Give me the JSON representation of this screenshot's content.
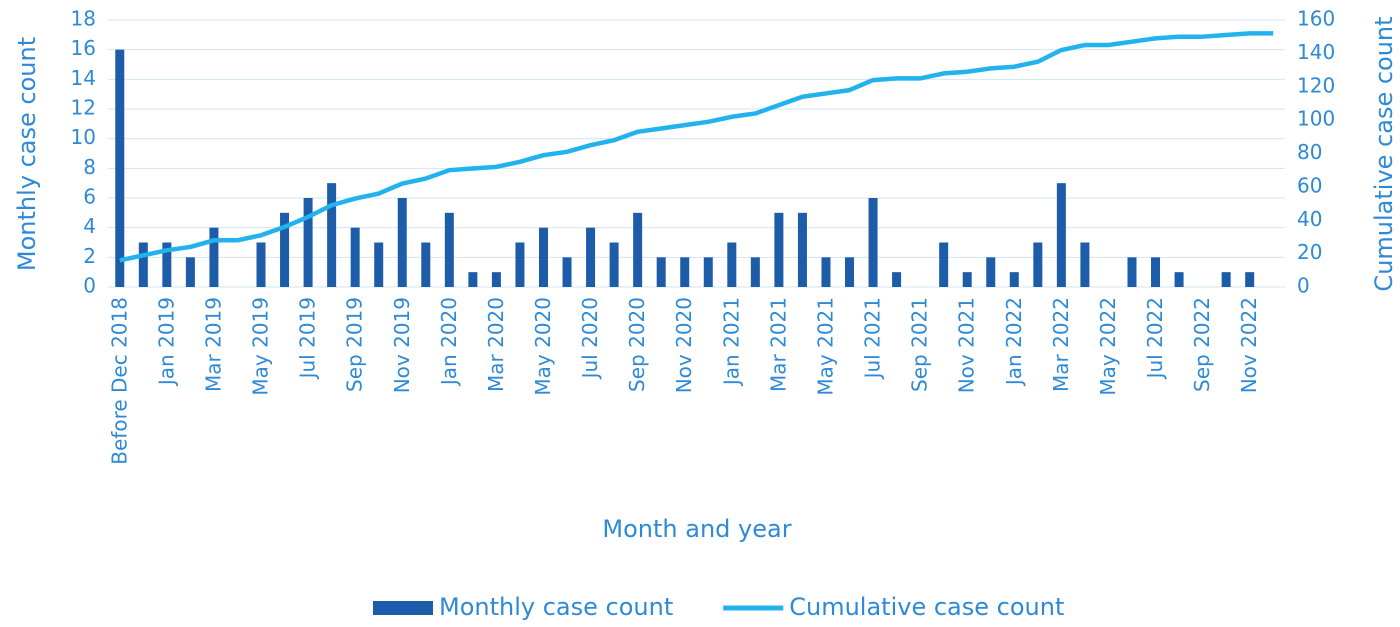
{
  "chart_data": {
    "type": "bar",
    "x_label": "Month and year",
    "y_label": "Monthly  case count",
    "y2_label": "Cumulative  case count",
    "categories": [
      "Before Dec 2018",
      null,
      "Jan 2019",
      null,
      "Mar 2019",
      null,
      "May 2019",
      null,
      "Jul 2019",
      null,
      "Sep 2019",
      null,
      "Nov 2019",
      null,
      "Jan 2020",
      null,
      "Mar 2020",
      null,
      "May 2020",
      null,
      "Jul 2020",
      null,
      "Sep 2020",
      null,
      "Nov 2020",
      null,
      "Jan 2021",
      null,
      "Mar 2021",
      null,
      "May 2021",
      null,
      "Jul 2021",
      null,
      "Sep 2021",
      null,
      "Nov 2021",
      null,
      "Jan 2022",
      null,
      "Mar 2022",
      null,
      "May 2022",
      null,
      "Jul 2022",
      null,
      "Sep 2022",
      null,
      "Nov 2022",
      null
    ],
    "series": [
      {
        "name": "Monthly case count",
        "type": "bar",
        "color": "#1c5ca8",
        "values": [
          16,
          3,
          3,
          2,
          4,
          0,
          3,
          5,
          6,
          7,
          4,
          3,
          6,
          3,
          5,
          1,
          1,
          3,
          4,
          2,
          4,
          3,
          5,
          2,
          2,
          2,
          3,
          2,
          5,
          5,
          2,
          2,
          6,
          1,
          0,
          3,
          1,
          2,
          1,
          3,
          7,
          3,
          0,
          2,
          2,
          1,
          0,
          1,
          1,
          0
        ]
      },
      {
        "name": "Cumulative case count",
        "type": "line",
        "axis": "y2",
        "color": "#22b2ee",
        "values": [
          16,
          19,
          22,
          24,
          28,
          28,
          31,
          36,
          42,
          49,
          53,
          56,
          62,
          65,
          70,
          71,
          72,
          75,
          79,
          81,
          85,
          88,
          93,
          95,
          97,
          99,
          102,
          104,
          109,
          114,
          116,
          118,
          124,
          125,
          125,
          128,
          129,
          131,
          132,
          135,
          142,
          145,
          145,
          147,
          149,
          150,
          150,
          151,
          152,
          152
        ]
      }
    ],
    "ylim": [
      0,
      18
    ],
    "yticks": [
      0,
      2,
      4,
      6,
      8,
      10,
      12,
      14,
      16,
      18
    ],
    "y2lim": [
      0,
      160
    ],
    "y2ticks": [
      0,
      20,
      40,
      60,
      80,
      100,
      120,
      140,
      160
    ],
    "grid": true,
    "legend": "bottom"
  }
}
